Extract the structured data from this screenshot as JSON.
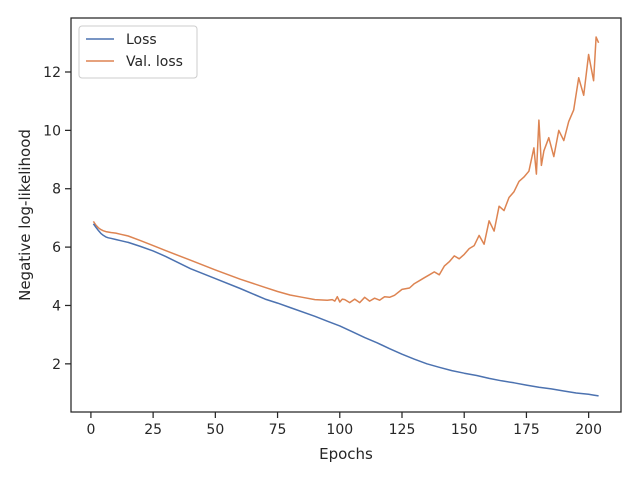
{
  "chart_data": {
    "type": "line",
    "xlabel": "Epochs",
    "ylabel": "Negative log-likelihood",
    "xlim": [
      -8,
      213
    ],
    "ylim": [
      0.35,
      13.85
    ],
    "xticks": [
      0,
      25,
      50,
      75,
      100,
      125,
      150,
      175,
      200
    ],
    "yticks": [
      2,
      4,
      6,
      8,
      10,
      12
    ],
    "grid": false,
    "legend_position": "top-left",
    "series": [
      {
        "name": "Loss",
        "color": "#4c72b0",
        "x": [
          1,
          2,
          3,
          4,
          5,
          6,
          7,
          8,
          10,
          12,
          15,
          20,
          25,
          30,
          40,
          50,
          60,
          70,
          75,
          80,
          90,
          95,
          100,
          105,
          110,
          115,
          120,
          125,
          130,
          135,
          140,
          145,
          150,
          155,
          160,
          165,
          170,
          175,
          180,
          185,
          190,
          195,
          200,
          202,
          204
        ],
        "y": [
          6.8,
          6.68,
          6.57,
          6.47,
          6.4,
          6.35,
          6.32,
          6.3,
          6.26,
          6.22,
          6.16,
          6.02,
          5.87,
          5.68,
          5.26,
          4.92,
          4.58,
          4.22,
          4.08,
          3.93,
          3.63,
          3.46,
          3.3,
          3.1,
          2.9,
          2.72,
          2.52,
          2.33,
          2.16,
          2.0,
          1.88,
          1.77,
          1.68,
          1.6,
          1.5,
          1.42,
          1.35,
          1.27,
          1.2,
          1.14,
          1.07,
          1.0,
          0.96,
          0.93,
          0.9
        ]
      },
      {
        "name": "Val. loss",
        "color": "#dd8452",
        "x": [
          1,
          2,
          3,
          4,
          5,
          6,
          8,
          10,
          12,
          15,
          20,
          25,
          30,
          40,
          50,
          60,
          70,
          75,
          80,
          85,
          90,
          95,
          97,
          98,
          99,
          100,
          101,
          102,
          104,
          106,
          108,
          110,
          112,
          114,
          116,
          118,
          120,
          122,
          125,
          128,
          130,
          132,
          134,
          136,
          138,
          140,
          142,
          144,
          146,
          148,
          150,
          152,
          154,
          156,
          158,
          160,
          162,
          164,
          166,
          168,
          170,
          172,
          174,
          176,
          178,
          179,
          180,
          181,
          182,
          184,
          186,
          188,
          190,
          192,
          194,
          196,
          198,
          200,
          202,
          203,
          204
        ],
        "y": [
          6.88,
          6.75,
          6.66,
          6.6,
          6.56,
          6.53,
          6.5,
          6.48,
          6.44,
          6.38,
          6.22,
          6.05,
          5.88,
          5.55,
          5.22,
          4.9,
          4.62,
          4.48,
          4.36,
          4.28,
          4.2,
          4.18,
          4.2,
          4.15,
          4.3,
          4.12,
          4.22,
          4.2,
          4.1,
          4.22,
          4.1,
          4.28,
          4.15,
          4.25,
          4.18,
          4.3,
          4.28,
          4.35,
          4.55,
          4.6,
          4.75,
          4.85,
          4.95,
          5.05,
          5.15,
          5.05,
          5.35,
          5.5,
          5.7,
          5.6,
          5.75,
          5.95,
          6.05,
          6.4,
          6.1,
          6.9,
          6.55,
          7.4,
          7.25,
          7.7,
          7.9,
          8.25,
          8.4,
          8.6,
          9.4,
          8.5,
          10.35,
          8.8,
          9.3,
          9.75,
          9.1,
          10.0,
          9.65,
          10.3,
          10.7,
          11.8,
          11.2,
          12.6,
          11.7,
          13.2,
          13.0
        ]
      }
    ]
  }
}
